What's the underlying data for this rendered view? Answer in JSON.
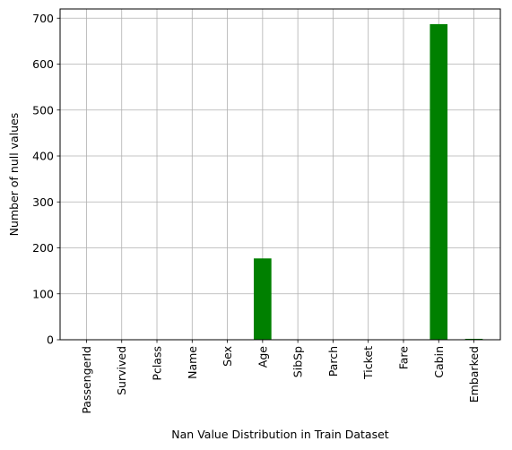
{
  "chart_data": {
    "type": "bar",
    "title": "",
    "xlabel": "Nan Value Distribution in Train Dataset",
    "ylabel": "Number of null values",
    "categories": [
      "PassengerId",
      "Survived",
      "Pclass",
      "Name",
      "Sex",
      "Age",
      "SibSp",
      "Parch",
      "Ticket",
      "Fare",
      "Cabin",
      "Embarked"
    ],
    "values": [
      0,
      0,
      0,
      0,
      0,
      177,
      0,
      0,
      0,
      0,
      687,
      2
    ],
    "ylim": [
      0,
      720
    ],
    "yticks": [
      0,
      100,
      200,
      300,
      400,
      500,
      600,
      700
    ],
    "bar_color": "#008000",
    "grid": true,
    "legend": "none"
  }
}
